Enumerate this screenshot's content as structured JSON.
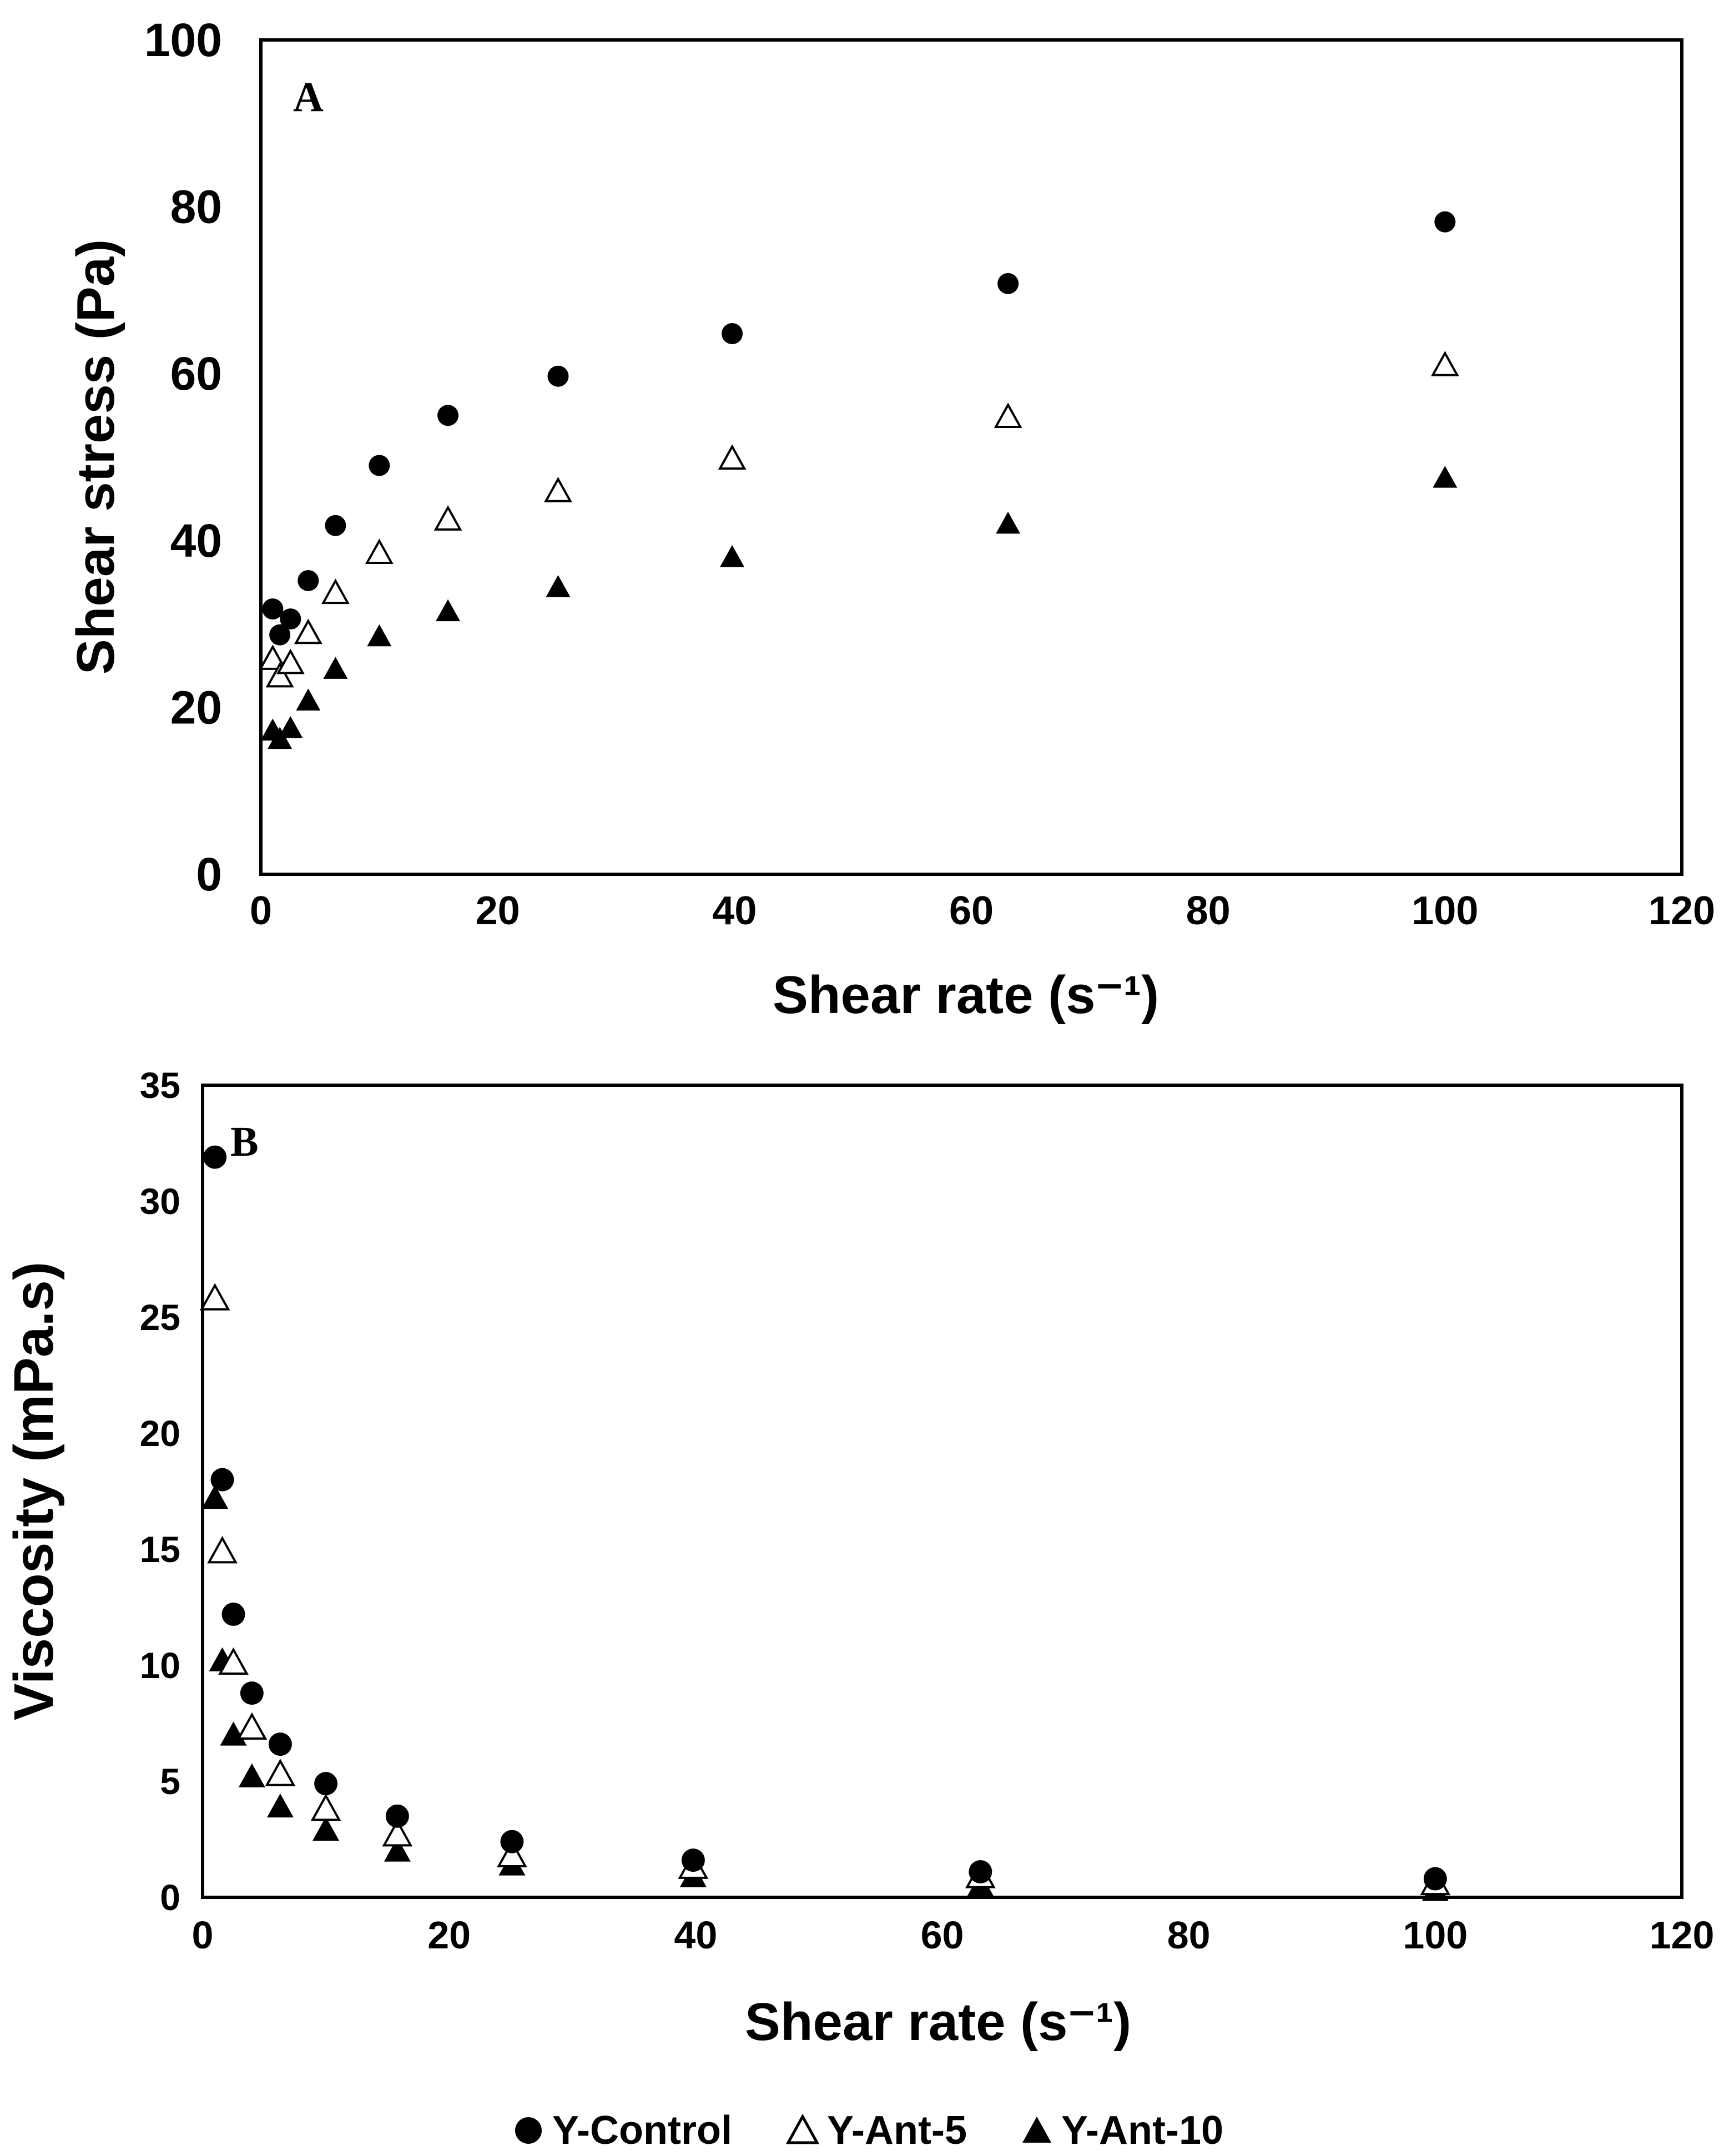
{
  "chart_data": [
    {
      "type": "scatter",
      "panel_label": "A",
      "xlabel": "Shear rate (s⁻¹)",
      "ylabel": "Shear stress (Pa)",
      "xlim": [
        0,
        120
      ],
      "ylim": [
        0,
        100
      ],
      "xticks": [
        "0",
        "20",
        "40",
        "60",
        "80",
        "100",
        "120"
      ],
      "yticks": [
        "0",
        "20",
        "40",
        "60",
        "80",
        "100"
      ],
      "grid": false,
      "series": [
        {
          "name": "Y-Control",
          "marker": "circle-filled",
          "points": [
            [
              1,
              31.8
            ],
            [
              1.6,
              28.7
            ],
            [
              2.5,
              30.6
            ],
            [
              4,
              35.2
            ],
            [
              6.3,
              41.8
            ],
            [
              10,
              49
            ],
            [
              15.8,
              55
            ],
            [
              25.1,
              59.7
            ],
            [
              39.8,
              64.8
            ],
            [
              63.1,
              70.8
            ],
            [
              100,
              78.2
            ]
          ]
        },
        {
          "name": "Y-Ant-5",
          "marker": "triangle-open",
          "points": [
            [
              1,
              25.8
            ],
            [
              1.6,
              23.7
            ],
            [
              2.5,
              25.3
            ],
            [
              4,
              28.9
            ],
            [
              6.3,
              33.7
            ],
            [
              10,
              38.5
            ],
            [
              15.8,
              42.5
            ],
            [
              25.1,
              45.9
            ],
            [
              39.8,
              49.8
            ],
            [
              63.1,
              54.8
            ],
            [
              100,
              61
            ]
          ]
        },
        {
          "name": "Y-Ant-10",
          "marker": "triangle-filled",
          "points": [
            [
              1,
              17.2
            ],
            [
              1.6,
              16.2
            ],
            [
              2.5,
              17.5
            ],
            [
              4,
              20.8
            ],
            [
              6.3,
              24.6
            ],
            [
              10,
              28.5
            ],
            [
              15.8,
              31.5
            ],
            [
              25.1,
              34.4
            ],
            [
              39.8,
              38
            ],
            [
              63.1,
              42
            ],
            [
              100,
              47.5
            ]
          ]
        }
      ]
    },
    {
      "type": "scatter",
      "panel_label": "B",
      "xlabel": "Shear rate (s⁻¹)",
      "ylabel": "Viscosity (mPa.s)",
      "xlim": [
        0,
        120
      ],
      "ylim": [
        0,
        35
      ],
      "xticks": [
        "0",
        "20",
        "40",
        "60",
        "80",
        "100",
        "120"
      ],
      "yticks": [
        "0",
        "5",
        "10",
        "15",
        "20",
        "25",
        "30",
        "35"
      ],
      "grid": false,
      "series": [
        {
          "name": "Y-Control",
          "marker": "circle-filled",
          "points": [
            [
              1,
              31.9
            ],
            [
              1.6,
              18
            ],
            [
              2.5,
              12.2
            ],
            [
              4,
              8.8
            ],
            [
              6.3,
              6.6
            ],
            [
              10,
              4.9
            ],
            [
              15.8,
              3.5
            ],
            [
              25.1,
              2.4
            ],
            [
              39.8,
              1.6
            ],
            [
              63.1,
              1.1
            ],
            [
              100,
              0.8
            ]
          ]
        },
        {
          "name": "Y-Ant-5",
          "marker": "triangle-open",
          "points": [
            [
              1,
              25.8
            ],
            [
              1.6,
              14.9
            ],
            [
              2.5,
              10.1
            ],
            [
              4,
              7.3
            ],
            [
              6.3,
              5.3
            ],
            [
              10,
              3.8
            ],
            [
              15.8,
              2.7
            ],
            [
              25.1,
              1.8
            ],
            [
              39.8,
              1.3
            ],
            [
              63.1,
              0.9
            ],
            [
              100,
              0.6
            ]
          ]
        },
        {
          "name": "Y-Ant-10",
          "marker": "triangle-filled",
          "points": [
            [
              1,
              17.2
            ],
            [
              1.6,
              10.2
            ],
            [
              2.5,
              7
            ],
            [
              4,
              5.2
            ],
            [
              6.3,
              3.9
            ],
            [
              10,
              2.9
            ],
            [
              15.8,
              2
            ],
            [
              25.1,
              1.4
            ],
            [
              39.8,
              0.9
            ],
            [
              63.1,
              0.5
            ],
            [
              100,
              0.3
            ]
          ]
        }
      ]
    }
  ],
  "legend": {
    "placement": "bottom-center",
    "items": [
      {
        "label": "Y-Control",
        "marker": "circle-filled"
      },
      {
        "label": "Y-Ant-5",
        "marker": "triangle-open"
      },
      {
        "label": "Y-Ant-10",
        "marker": "triangle-filled"
      }
    ]
  }
}
